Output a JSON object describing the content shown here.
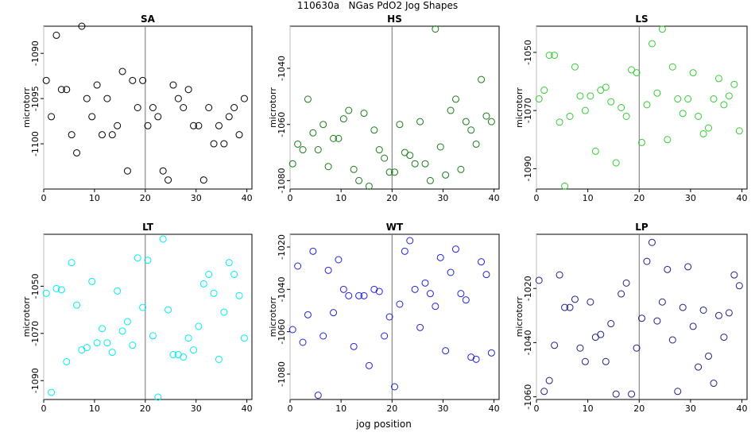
{
  "figure": {
    "title": "110630a   NGas PdO2 Jog Shapes",
    "xlabel": "jog position",
    "ylabel": "microtorr"
  },
  "chart_data": [
    {
      "type": "scatter",
      "title": "SA",
      "color": "#000000",
      "xlim": [
        0,
        41
      ],
      "ylim": [
        -1105,
        -1087
      ],
      "yticks": [
        -1100,
        -1095,
        -1090
      ],
      "xticks": [
        0,
        10,
        20,
        30,
        40
      ],
      "vline": 20,
      "x": [
        0.5,
        1.5,
        2.5,
        3.5,
        4.5,
        5.5,
        6.5,
        7.5,
        8.5,
        9.5,
        10.5,
        11.5,
        12.5,
        13.5,
        14.5,
        15.5,
        16.5,
        17.5,
        18.5,
        19.5,
        20.5,
        21.5,
        22.5,
        23.5,
        24.5,
        25.5,
        26.5,
        27.5,
        28.5,
        29.5,
        30.5,
        31.5,
        32.5,
        33.5,
        34.5,
        35.5,
        36.5,
        37.5,
        38.5,
        39.5
      ],
      "y": [
        -1093,
        -1097,
        -1088,
        -1094,
        -1094,
        -1099,
        -1101,
        -1087,
        -1095,
        -1097,
        -1093.5,
        -1099,
        -1095,
        -1099,
        -1098,
        -1092,
        -1103,
        -1093,
        -1096,
        -1093,
        -1098,
        -1096,
        -1097,
        -1103,
        -1104,
        -1093.5,
        -1095,
        -1096,
        -1094,
        -1098,
        -1098,
        -1104,
        -1096,
        -1100,
        -1098,
        -1100,
        -1097,
        -1096,
        -1099,
        -1095
      ]
    },
    {
      "type": "scatter",
      "title": "HS",
      "color": "#1a7a1a",
      "xlim": [
        0,
        41
      ],
      "ylim": [
        -1083,
        -1025
      ],
      "yticks": [
        -1080,
        -1060,
        -1040
      ],
      "xticks": [
        0,
        10,
        20,
        30,
        40
      ],
      "vline": 20,
      "x": [
        0.5,
        1.5,
        2.5,
        3.5,
        4.5,
        5.5,
        6.5,
        7.5,
        8.5,
        9.5,
        10.5,
        11.5,
        12.5,
        13.5,
        14.5,
        15.5,
        16.5,
        17.5,
        18.5,
        19.5,
        20.5,
        21.5,
        22.5,
        23.5,
        24.5,
        25.5,
        26.5,
        27.5,
        28.5,
        29.5,
        30.5,
        31.5,
        32.5,
        33.5,
        34.5,
        35.5,
        36.5,
        37.5,
        38.5,
        39.5
      ],
      "y": [
        -1074,
        -1067,
        -1069,
        -1051,
        -1063,
        -1069,
        -1060,
        -1075,
        -1065,
        -1065,
        -1058,
        -1055,
        -1076,
        -1080,
        -1056,
        -1082,
        -1062,
        -1069,
        -1072,
        -1077,
        -1077,
        -1060,
        -1070,
        -1071,
        -1074,
        -1059,
        -1074,
        -1080,
        -1026,
        -1068,
        -1078,
        -1055,
        -1051,
        -1076,
        -1059,
        -1062,
        -1067,
        -1044,
        -1057,
        -1059
      ]
    },
    {
      "type": "scatter",
      "title": "LS",
      "color": "#33cc33",
      "xlim": [
        0,
        41
      ],
      "ylim": [
        -1097,
        -1041
      ],
      "yticks": [
        -1090,
        -1070,
        -1050
      ],
      "xticks": [
        0,
        10,
        20,
        30,
        40
      ],
      "vline": 20,
      "x": [
        0.5,
        1.5,
        2.5,
        3.5,
        4.5,
        5.5,
        6.5,
        7.5,
        8.5,
        9.5,
        10.5,
        11.5,
        12.5,
        13.5,
        14.5,
        15.5,
        16.5,
        17.5,
        18.5,
        19.5,
        20.5,
        21.5,
        22.5,
        23.5,
        24.5,
        25.5,
        26.5,
        27.5,
        28.5,
        29.5,
        30.5,
        31.5,
        32.5,
        33.5,
        34.5,
        35.5,
        36.5,
        37.5,
        38.5,
        39.5
      ],
      "y": [
        -1066,
        -1063,
        -1051,
        -1051,
        -1074,
        -1096,
        -1072,
        -1055,
        -1065,
        -1070,
        -1065,
        -1084,
        -1063,
        -1062,
        -1067,
        -1088,
        -1069,
        -1072,
        -1056,
        -1057,
        -1081,
        -1068,
        -1047,
        -1064,
        -1042,
        -1080,
        -1055,
        -1066,
        -1071,
        -1066,
        -1057,
        -1072,
        -1078,
        -1076,
        -1066,
        -1059,
        -1068,
        -1065,
        -1061,
        -1077
      ]
    },
    {
      "type": "scatter",
      "title": "LT",
      "color": "#00eeee",
      "xlim": [
        0,
        41
      ],
      "ylim": [
        -1098,
        -1028
      ],
      "yticks": [
        -1090,
        -1070,
        -1050
      ],
      "xticks": [
        0,
        10,
        20,
        30,
        40
      ],
      "vline": 20,
      "x": [
        0.5,
        1.5,
        2.5,
        3.5,
        4.5,
        5.5,
        6.5,
        7.5,
        8.5,
        9.5,
        10.5,
        11.5,
        12.5,
        13.5,
        14.5,
        15.5,
        16.5,
        17.5,
        18.5,
        19.5,
        20.5,
        21.5,
        22.5,
        23.5,
        24.5,
        25.5,
        26.5,
        27.5,
        28.5,
        29.5,
        30.5,
        31.5,
        32.5,
        33.5,
        34.5,
        35.5,
        36.5,
        37.5,
        38.5,
        39.5
      ],
      "y": [
        -1053,
        -1095,
        -1051,
        -1051.5,
        -1082,
        -1040,
        -1058,
        -1077,
        -1076,
        -1048,
        -1074,
        -1068,
        -1074,
        -1078,
        -1052,
        -1069,
        -1065,
        -1075,
        -1038,
        -1059,
        -1039,
        -1071,
        -1097,
        -1030,
        -1060,
        -1079,
        -1079,
        -1080,
        -1072,
        -1077,
        -1067,
        -1049,
        -1045,
        -1053,
        -1081,
        -1061,
        -1040,
        -1045,
        -1054,
        -1072
      ]
    },
    {
      "type": "scatter",
      "title": "WT",
      "color": "#2222dd",
      "xlim": [
        0,
        41
      ],
      "ylim": [
        -1092,
        -1014
      ],
      "yticks": [
        -1080,
        -1060,
        -1040,
        -1020
      ],
      "xticks": [
        0,
        10,
        20,
        30,
        40
      ],
      "vline": 20,
      "x": [
        0.5,
        1.5,
        2.5,
        3.5,
        4.5,
        5.5,
        6.5,
        7.5,
        8.5,
        9.5,
        10.5,
        11.5,
        12.5,
        13.5,
        14.5,
        15.5,
        16.5,
        17.5,
        18.5,
        19.5,
        20.5,
        21.5,
        22.5,
        23.5,
        24.5,
        25.5,
        26.5,
        27.5,
        28.5,
        29.5,
        30.5,
        31.5,
        32.5,
        33.5,
        34.5,
        35.5,
        36.5,
        37.5,
        38.5,
        39.5
      ],
      "y": [
        -1059,
        -1029,
        -1065,
        -1052,
        -1022,
        -1090,
        -1062,
        -1031,
        -1051,
        -1026,
        -1040,
        -1043,
        -1067,
        -1043,
        -1043,
        -1076,
        -1040,
        -1041,
        -1062,
        -1053,
        -1086,
        -1047,
        -1022,
        -1017,
        -1040,
        -1058,
        -1037,
        -1042,
        -1048,
        -1025,
        -1069,
        -1032,
        -1021,
        -1042,
        -1045,
        -1072,
        -1073,
        -1027,
        -1033,
        -1070
      ]
    },
    {
      "type": "scatter",
      "title": "LP",
      "color": "#202080",
      "xlim": [
        0,
        41
      ],
      "ylim": [
        -1061,
        -1000
      ],
      "yticks": [
        -1060,
        -1040,
        -1020
      ],
      "xticks": [
        0,
        10,
        20,
        30,
        40
      ],
      "vline": 20,
      "x": [
        0.5,
        1.5,
        2.5,
        3.5,
        4.5,
        5.5,
        6.5,
        7.5,
        8.5,
        9.5,
        10.5,
        11.5,
        12.5,
        13.5,
        14.5,
        15.5,
        16.5,
        17.5,
        18.5,
        19.5,
        20.5,
        21.5,
        22.5,
        23.5,
        24.5,
        25.5,
        26.5,
        27.5,
        28.5,
        29.5,
        30.5,
        31.5,
        32.5,
        33.5,
        34.5,
        35.5,
        36.5,
        37.5,
        38.5,
        39.5
      ],
      "y": [
        -1017,
        -1058,
        -1054,
        -1041,
        -1015,
        -1027,
        -1027,
        -1024,
        -1042,
        -1047,
        -1025,
        -1038,
        -1037,
        -1047,
        -1033,
        -1059,
        -1022,
        -1018,
        -1059,
        -1042,
        -1031,
        -1010,
        -1003,
        -1032,
        -1025,
        -1013,
        -1039,
        -1058,
        -1027,
        -1012,
        -1034,
        -1049,
        -1028,
        -1045,
        -1055,
        -1030,
        -1038,
        -1029,
        -1015,
        -1019
      ]
    }
  ]
}
